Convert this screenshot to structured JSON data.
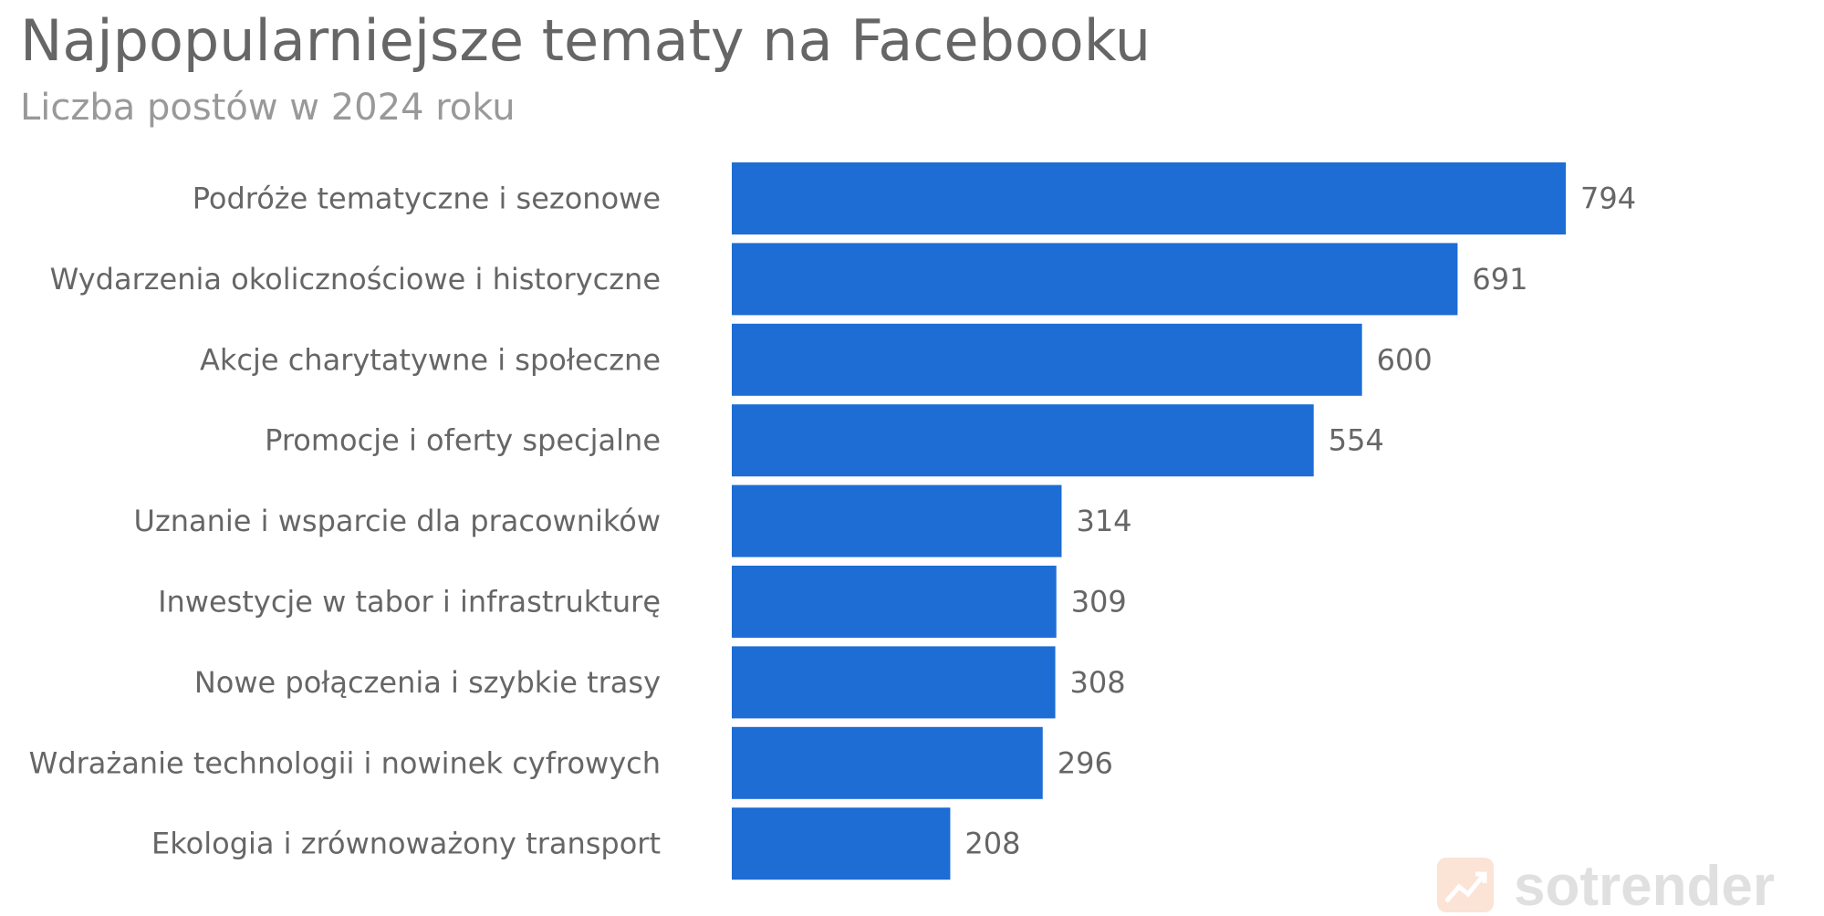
{
  "chart_data": {
    "type": "bar",
    "orientation": "horizontal",
    "title": "Najpopularniejsze tematy na Facebooku",
    "subtitle": "Liczba postów w 2024 roku",
    "categories": [
      "Podróże tematyczne i sezonowe",
      "Wydarzenia okolicznościowe i historyczne",
      "Akcje charytatywne i społeczne",
      "Promocje i oferty specjalne",
      "Uznanie i wsparcie dla pracowników",
      "Inwestycje w tabor i infrastrukturę",
      "Nowe połączenia i szybkie trasy",
      "Wdrażanie technologii i nowinek cyfrowych",
      "Ekologia i zrównoważony transport"
    ],
    "values": [
      794,
      691,
      600,
      554,
      314,
      309,
      308,
      296,
      208
    ],
    "xlim": [
      0,
      794
    ],
    "grid": false,
    "legend": "none",
    "bar_color": "#1d6dd5"
  },
  "watermark": {
    "text": "sotrender",
    "icon": "trend-up-icon",
    "color": "#e0e0e0",
    "icon_color": "#fbe3d6"
  }
}
